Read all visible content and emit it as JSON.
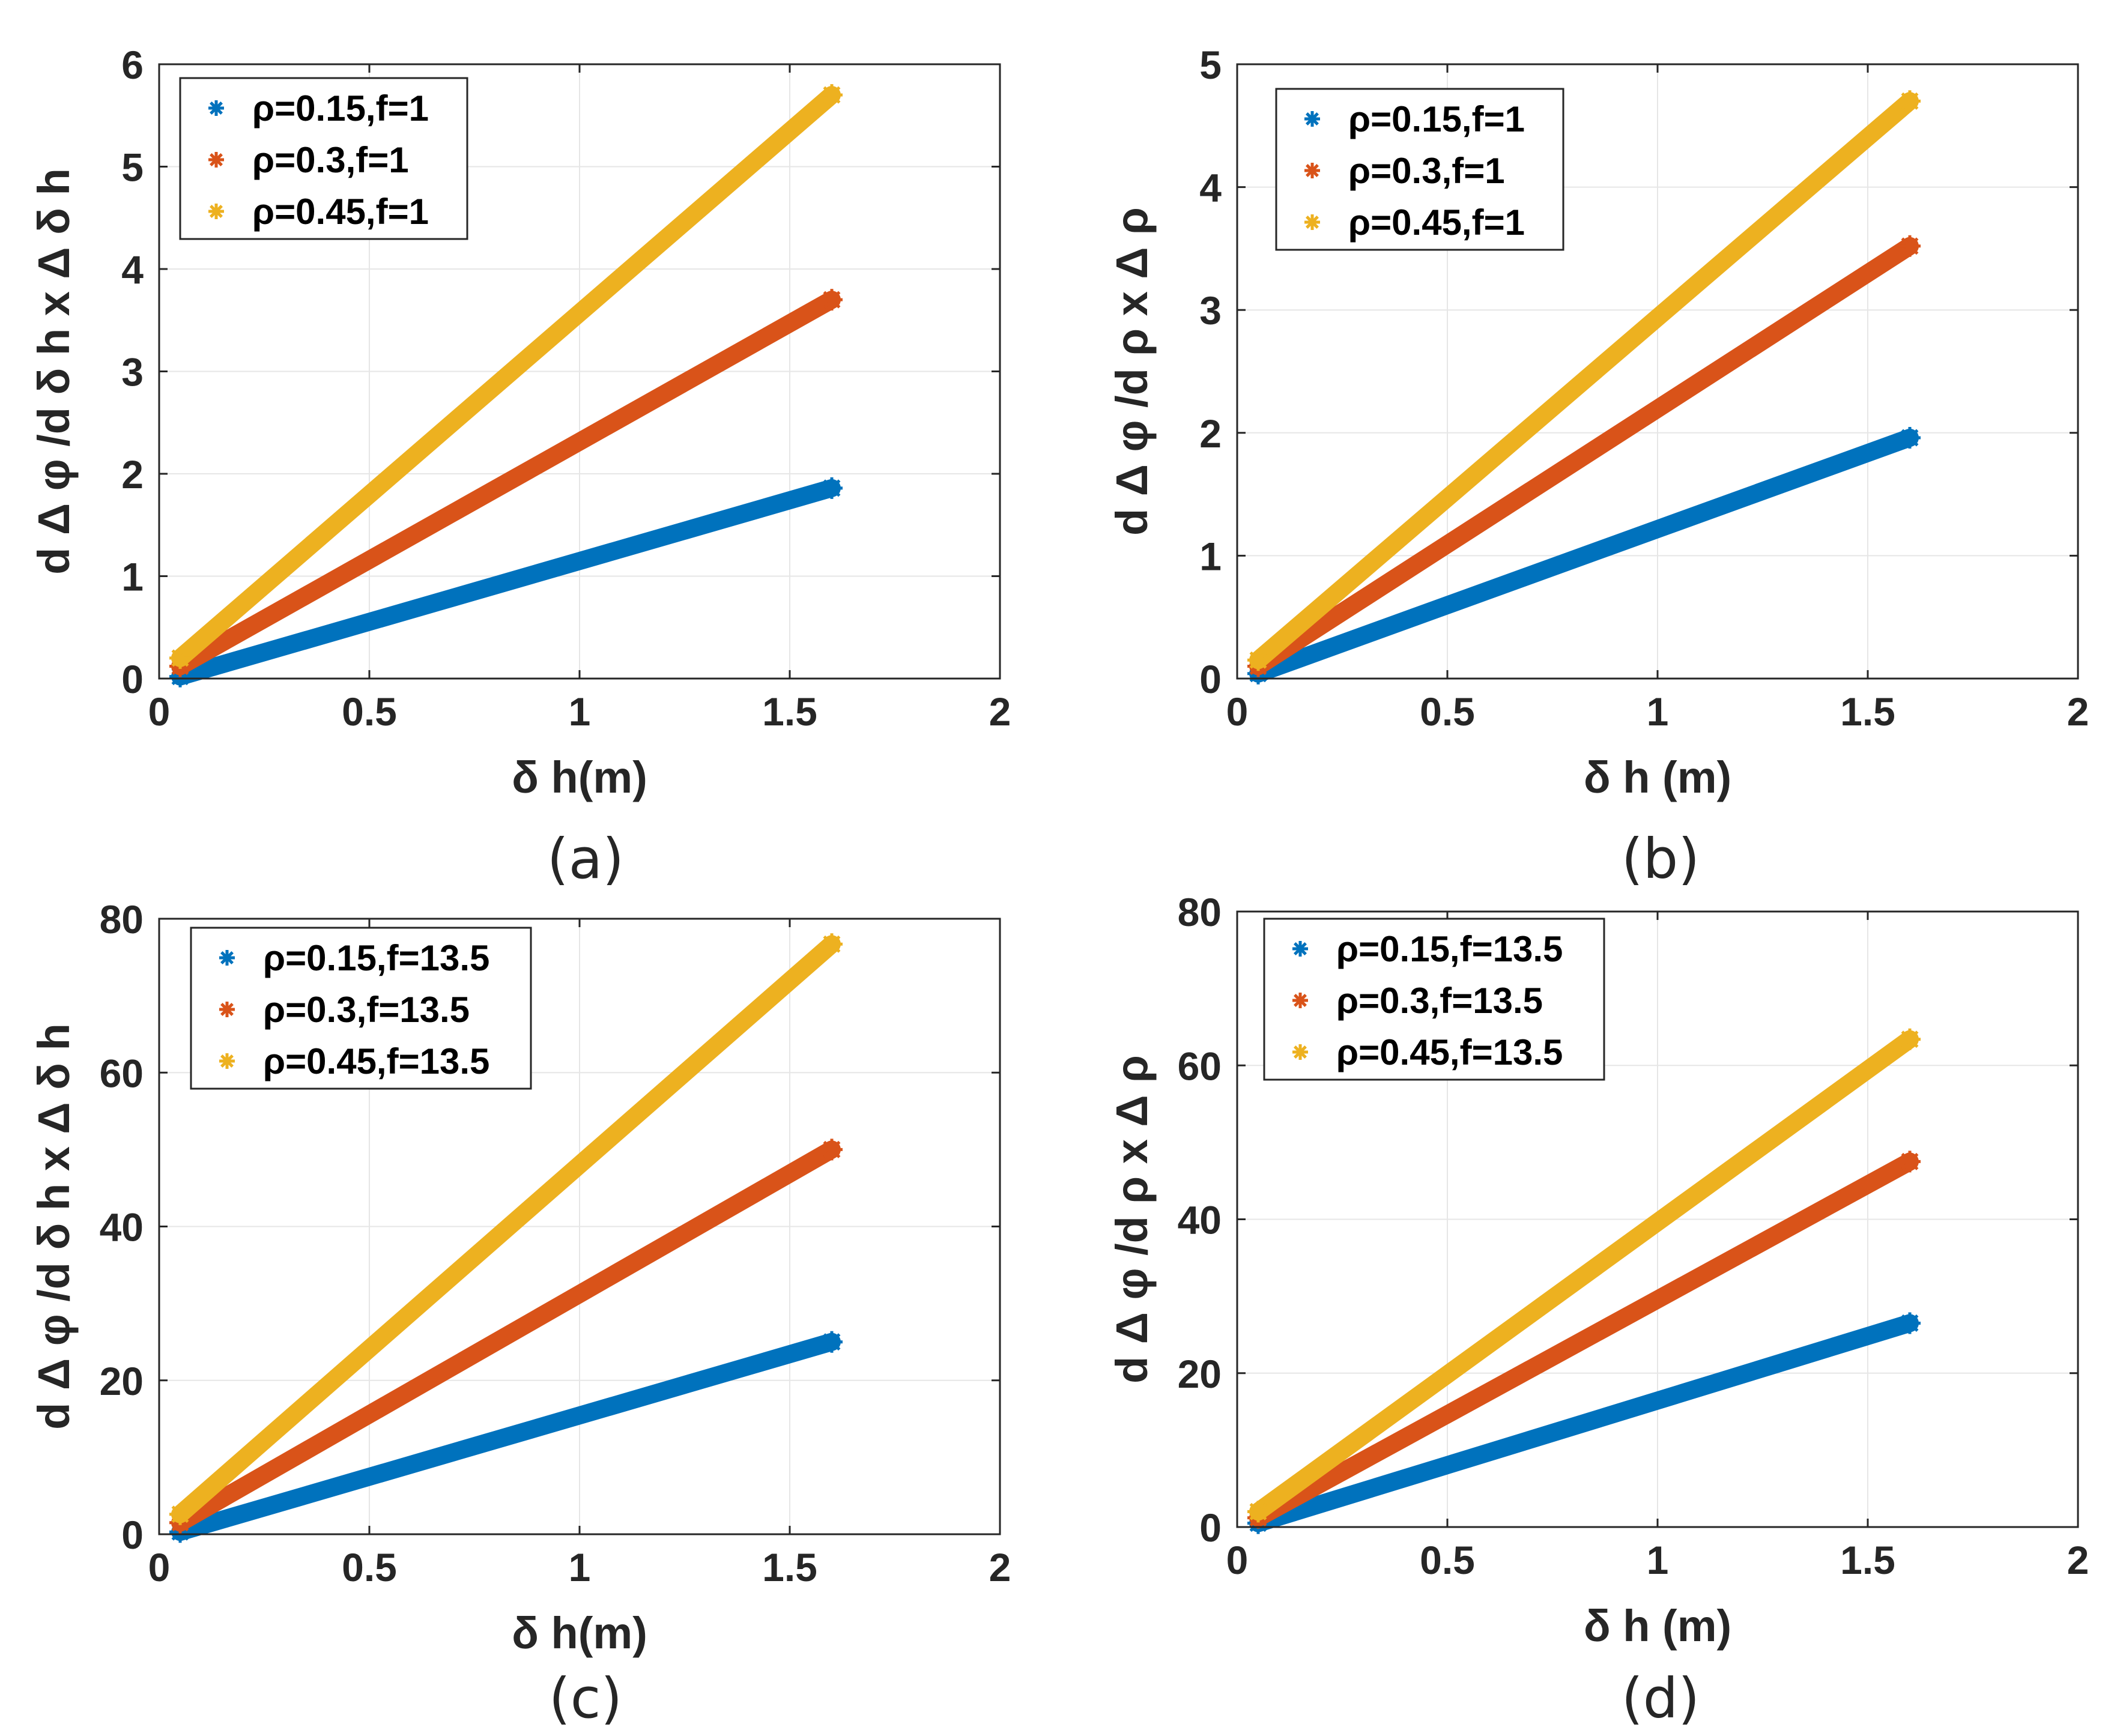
{
  "colors": {
    "series1": "#0072BD",
    "series2": "#D95319",
    "series3": "#EDB120"
  },
  "chart_data": [
    {
      "type": "scatter",
      "panel": "a",
      "caption": "(a)",
      "xlabel": "δ h(m)",
      "ylabel": "d Δ φ /d δ h x Δ δ h",
      "xlim": [
        0,
        2
      ],
      "ylim": [
        0,
        6
      ],
      "xticks": [
        0,
        0.5,
        1,
        1.5,
        2
      ],
      "xtick_labels": [
        "0",
        "0.5",
        "1",
        "1.5",
        "2"
      ],
      "yticks": [
        0,
        1,
        2,
        3,
        4,
        5,
        6
      ],
      "ytick_labels": [
        "0",
        "1",
        "2",
        "3",
        "4",
        "5",
        "6"
      ],
      "grid": true,
      "legend_position": "top-left",
      "series": [
        {
          "name": "ρ=0.15,f=1",
          "x": [
            0.05,
            1.6
          ],
          "y": [
            0.02,
            1.86
          ]
        },
        {
          "name": "ρ=0.3,f=1",
          "x": [
            0.05,
            1.6
          ],
          "y": [
            0.12,
            3.7
          ]
        },
        {
          "name": "ρ=0.45,f=1",
          "x": [
            0.05,
            1.6
          ],
          "y": [
            0.2,
            5.7
          ]
        }
      ]
    },
    {
      "type": "scatter",
      "panel": "b",
      "caption": "(b)",
      "xlabel": "δ h (m)",
      "ylabel": "d Δ φ /d ρ x Δ ρ",
      "xlim": [
        0,
        2
      ],
      "ylim": [
        0,
        5
      ],
      "xticks": [
        0,
        0.5,
        1,
        1.5,
        2
      ],
      "xtick_labels": [
        "0",
        "0.5",
        "1",
        "1.5",
        "2"
      ],
      "yticks": [
        0,
        1,
        2,
        3,
        4,
        5
      ],
      "ytick_labels": [
        "0",
        "1",
        "2",
        "3",
        "4",
        "5"
      ],
      "grid": true,
      "legend_position": "top-left",
      "series": [
        {
          "name": "ρ=0.15,f=1",
          "x": [
            0.05,
            1.6
          ],
          "y": [
            0.04,
            1.96
          ]
        },
        {
          "name": "ρ=0.3,f=1",
          "x": [
            0.05,
            1.6
          ],
          "y": [
            0.1,
            3.52
          ]
        },
        {
          "name": "ρ=0.45,f=1",
          "x": [
            0.05,
            1.6
          ],
          "y": [
            0.15,
            4.7
          ]
        }
      ]
    },
    {
      "type": "scatter",
      "panel": "c",
      "caption": "(c)",
      "xlabel": "δ h(m)",
      "ylabel": "d Δ φ /d δ h x Δ δ h",
      "xlim": [
        0,
        2
      ],
      "ylim": [
        0,
        80
      ],
      "xticks": [
        0,
        0.5,
        1,
        1.5,
        2
      ],
      "xtick_labels": [
        "0",
        "0.5",
        "1",
        "1.5",
        "2"
      ],
      "yticks": [
        0,
        20,
        40,
        60,
        80
      ],
      "ytick_labels": [
        "0",
        "20",
        "40",
        "60",
        "80"
      ],
      "grid": true,
      "legend_position": "top-left",
      "series": [
        {
          "name": "ρ=0.15,f=13.5",
          "x": [
            0.05,
            1.6
          ],
          "y": [
            0.3,
            25
          ]
        },
        {
          "name": "ρ=0.3,f=13.5",
          "x": [
            0.05,
            1.6
          ],
          "y": [
            1.5,
            50
          ]
        },
        {
          "name": "ρ=0.45,f=13.5",
          "x": [
            0.05,
            1.6
          ],
          "y": [
            2.6,
            76.7
          ]
        }
      ]
    },
    {
      "type": "scatter",
      "panel": "d",
      "caption": "(d)",
      "xlabel": "δ h (m)",
      "ylabel": "d Δ φ /d ρ x Δ ρ",
      "xlim": [
        0,
        2
      ],
      "ylim": [
        0,
        80
      ],
      "xticks": [
        0,
        0.5,
        1,
        1.5,
        2
      ],
      "xtick_labels": [
        "0",
        "0.5",
        "1",
        "1.5",
        "2"
      ],
      "yticks": [
        0,
        20,
        40,
        60,
        80
      ],
      "ytick_labels": [
        "0",
        "20",
        "40",
        "60",
        "80"
      ],
      "grid": true,
      "legend_position": "top-left",
      "series": [
        {
          "name": "ρ=0.15,f=13.5",
          "x": [
            0.05,
            1.6
          ],
          "y": [
            0.5,
            26.5
          ]
        },
        {
          "name": "ρ=0.3,f=13.5",
          "x": [
            0.05,
            1.6
          ],
          "y": [
            1.2,
            47.5
          ]
        },
        {
          "name": "ρ=0.45,f=13.5",
          "x": [
            0.05,
            1.6
          ],
          "y": [
            2.0,
            63.4
          ]
        }
      ]
    }
  ]
}
